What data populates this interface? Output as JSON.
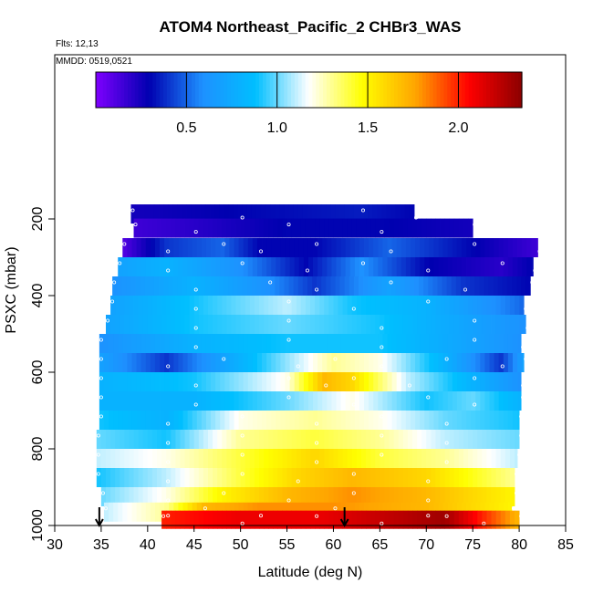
{
  "chart_data": {
    "type": "heatmap",
    "title": "ATOM4 Northeast_Pacific_2 CHBr3_WAS",
    "subtitle_flights": "Flts: 12,13",
    "subtitle_dates": "MMDD: 0519,0521",
    "xlabel": "Latitude (deg N)",
    "ylabel": "PSXC (mbar)",
    "xlim": [
      30,
      85
    ],
    "ylim": [
      1000,
      0
    ],
    "x_ticks": [
      "30",
      "35",
      "40",
      "45",
      "50",
      "55",
      "60",
      "65",
      "70",
      "75",
      "80",
      "85"
    ],
    "y_ticks": [
      "200",
      "400",
      "600",
      "800",
      "1000"
    ],
    "colorbar": {
      "range": [
        0,
        2.35
      ],
      "ticks": [
        "0.5",
        "1.0",
        "1.5",
        "2.0"
      ],
      "stops": [
        "#7f00ff",
        "#0000b0",
        "#1e90ff",
        "#00bfff",
        "#ffffff",
        "#ffff00",
        "#ffa500",
        "#ff0000",
        "#8b0000"
      ]
    },
    "arrow_latitudes": [
      34.8,
      61.2
    ],
    "rows": [
      {
        "p": 187,
        "lat": [
          38.2,
          68.7
        ],
        "points": [
          [
            38.2,
            0.25
          ],
          [
            50,
            0.3
          ],
          [
            63,
            0.35
          ],
          [
            68.7,
            0.3
          ]
        ]
      },
      {
        "p": 224,
        "lat": [
          38.5,
          75.0
        ],
        "points": [
          [
            38.5,
            0.15
          ],
          [
            45,
            0.2
          ],
          [
            55,
            0.3
          ],
          [
            65,
            0.3
          ],
          [
            75,
            0.25
          ]
        ]
      },
      {
        "p": 275,
        "lat": [
          37.3,
          82.0
        ],
        "points": [
          [
            37.3,
            0.1
          ],
          [
            42,
            0.4
          ],
          [
            48,
            0.5
          ],
          [
            52,
            0.3
          ],
          [
            58,
            0.3
          ],
          [
            66,
            0.5
          ],
          [
            75,
            0.3
          ],
          [
            82,
            0.15
          ]
        ]
      },
      {
        "p": 325,
        "lat": [
          36.8,
          81.5
        ],
        "points": [
          [
            36.8,
            0.7
          ],
          [
            42,
            0.8
          ],
          [
            50,
            0.6
          ],
          [
            57,
            0.3
          ],
          [
            63,
            0.6
          ],
          [
            70,
            0.3
          ],
          [
            78,
            0.2
          ],
          [
            81.5,
            0.3
          ]
        ]
      },
      {
        "p": 375,
        "lat": [
          36.2,
          81.2
        ],
        "points": [
          [
            36.2,
            0.6
          ],
          [
            45,
            0.8
          ],
          [
            53,
            0.6
          ],
          [
            58,
            0.4
          ],
          [
            66,
            0.7
          ],
          [
            74,
            0.4
          ],
          [
            81.2,
            0.3
          ]
        ]
      },
      {
        "p": 425,
        "lat": [
          36.0,
          80.5
        ],
        "points": [
          [
            36,
            0.7
          ],
          [
            45,
            0.9
          ],
          [
            55,
            1.1
          ],
          [
            62,
            0.9
          ],
          [
            70,
            0.8
          ],
          [
            80.5,
            0.5
          ]
        ]
      },
      {
        "p": 475,
        "lat": [
          35.5,
          80.7
        ],
        "points": [
          [
            35.5,
            0.7
          ],
          [
            45,
            0.9
          ],
          [
            55,
            1.0
          ],
          [
            65,
            0.9
          ],
          [
            75,
            0.7
          ],
          [
            80.7,
            0.6
          ]
        ]
      },
      {
        "p": 525,
        "lat": [
          34.8,
          80.2
        ],
        "points": [
          [
            34.8,
            0.6
          ],
          [
            45,
            0.8
          ],
          [
            55,
            0.9
          ],
          [
            65,
            0.9
          ],
          [
            75,
            0.7
          ],
          [
            80.2,
            0.6
          ]
        ]
      },
      {
        "p": 575,
        "lat": [
          34.8,
          80.5
        ],
        "points": [
          [
            34.8,
            0.7
          ],
          [
            42,
            0.4
          ],
          [
            48,
            0.7
          ],
          [
            56,
            1.1
          ],
          [
            60,
            1.3
          ],
          [
            65,
            1.2
          ],
          [
            72,
            0.8
          ],
          [
            78,
            0.4
          ],
          [
            80.5,
            0.7
          ]
        ]
      },
      {
        "p": 625,
        "lat": [
          34.8,
          80.2
        ],
        "points": [
          [
            34.8,
            0.8
          ],
          [
            45,
            0.9
          ],
          [
            55,
            1.2
          ],
          [
            59,
            1.7
          ],
          [
            62,
            1.6
          ],
          [
            68,
            1.1
          ],
          [
            75,
            0.8
          ],
          [
            80.2,
            0.6
          ]
        ]
      },
      {
        "p": 675,
        "lat": [
          34.8,
          80.2
        ],
        "points": [
          [
            34.8,
            0.8
          ],
          [
            45,
            0.8
          ],
          [
            55,
            1.0
          ],
          [
            62,
            1.2
          ],
          [
            70,
            0.9
          ],
          [
            75,
            1.0
          ],
          [
            80.2,
            0.8
          ]
        ]
      },
      {
        "p": 725,
        "lat": [
          34.8,
          80.0
        ],
        "points": [
          [
            34.8,
            0.9
          ],
          [
            42,
            0.8
          ],
          [
            50,
            1.2
          ],
          [
            58,
            1.3
          ],
          [
            65,
            1.2
          ],
          [
            72,
            1.0
          ],
          [
            80,
            0.9
          ]
        ]
      },
      {
        "p": 775,
        "lat": [
          34.5,
          80.0
        ],
        "points": [
          [
            34.5,
            1.0
          ],
          [
            42,
            0.9
          ],
          [
            50,
            1.3
          ],
          [
            58,
            1.4
          ],
          [
            65,
            1.3
          ],
          [
            72,
            1.1
          ],
          [
            80,
            1.0
          ]
        ]
      },
      {
        "p": 825,
        "lat": [
          34.5,
          79.8
        ],
        "points": [
          [
            34.5,
            1.1
          ],
          [
            42,
            1.2
          ],
          [
            50,
            1.4
          ],
          [
            58,
            1.6
          ],
          [
            65,
            1.4
          ],
          [
            72,
            1.3
          ],
          [
            79.8,
            1.1
          ]
        ]
      },
      {
        "p": 875,
        "lat": [
          34.5,
          79.5
        ],
        "points": [
          [
            34.5,
            0.9
          ],
          [
            42,
            1.1
          ],
          [
            50,
            1.4
          ],
          [
            56,
            1.6
          ],
          [
            62,
            1.7
          ],
          [
            70,
            1.6
          ],
          [
            79.5,
            1.3
          ]
        ]
      },
      {
        "p": 925,
        "lat": [
          35.0,
          79.5
        ],
        "points": [
          [
            35,
            1.0
          ],
          [
            42,
            1.2
          ],
          [
            48,
            1.5
          ],
          [
            55,
            1.7
          ],
          [
            62,
            1.8
          ],
          [
            70,
            1.7
          ],
          [
            79.5,
            1.5
          ]
        ]
      },
      {
        "p": 965,
        "lat": [
          35.3,
          79.2
        ],
        "points": [
          [
            35.3,
            1.1
          ],
          [
            42,
            1.3
          ],
          [
            46,
            1.7
          ],
          [
            52,
            1.8
          ],
          [
            60,
            1.8
          ],
          [
            70,
            1.7
          ],
          [
            79.2,
            1.5
          ]
        ]
      },
      {
        "p": 985,
        "lat": [
          41.5,
          80.0
        ],
        "points": [
          [
            41.5,
            2.0
          ],
          [
            50,
            2.1
          ],
          [
            58,
            2.1
          ],
          [
            65,
            2.2
          ],
          [
            72,
            2.3
          ],
          [
            76,
            2.0
          ],
          [
            80,
            1.7
          ]
        ]
      }
    ]
  }
}
